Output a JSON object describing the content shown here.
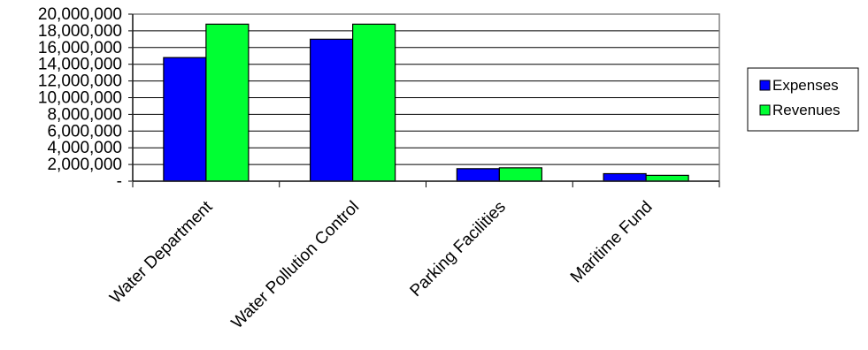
{
  "chart_data": {
    "type": "bar",
    "categories": [
      "Water Department",
      "Water Pollution Control",
      "Parking Facilities",
      "Maritime Fund"
    ],
    "series": [
      {
        "name": "Expenses",
        "values": [
          14800000,
          17000000,
          1500000,
          900000
        ]
      },
      {
        "name": "Revenues",
        "values": [
          18800000,
          18800000,
          1600000,
          700000
        ]
      }
    ],
    "colors": {
      "Expenses": "#0000ff",
      "Revenues": "#00ff33"
    },
    "ylim": [
      0,
      20000000
    ],
    "yticks": [
      {
        "value": 0,
        "label": "-"
      },
      {
        "value": 2000000,
        "label": "2,000,000"
      },
      {
        "value": 4000000,
        "label": "4,000,000"
      },
      {
        "value": 6000000,
        "label": "6,000,000"
      },
      {
        "value": 8000000,
        "label": "8,000,000"
      },
      {
        "value": 10000000,
        "label": "10,000,000"
      },
      {
        "value": 12000000,
        "label": "12,000,000"
      },
      {
        "value": 14000000,
        "label": "14,000,000"
      },
      {
        "value": 16000000,
        "label": "16,000,000"
      },
      {
        "value": 18000000,
        "label": "18,000,000"
      },
      {
        "value": 20000000,
        "label": "20,000,000"
      }
    ],
    "grid": true,
    "legend": "right"
  }
}
